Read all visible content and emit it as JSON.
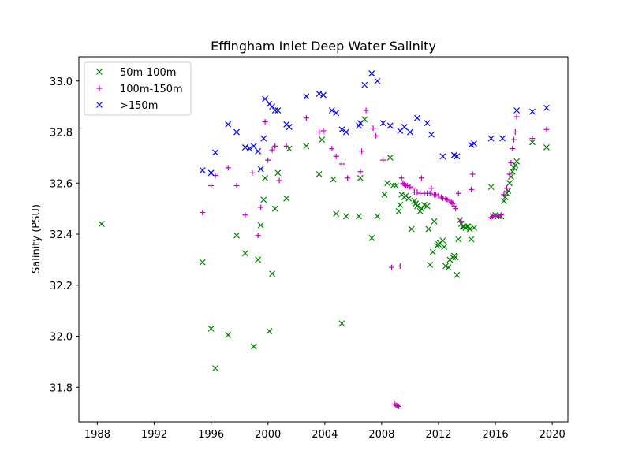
{
  "chart_data": {
    "type": "scatter",
    "title": "Effingham Inlet Deep Water Salinity",
    "xlabel": "",
    "ylabel": "Salinity (PSU)",
    "xlim": [
      1986.7,
      2021.1
    ],
    "ylim": [
      31.665,
      33.095
    ],
    "x_ticks": [
      1988,
      1992,
      1996,
      2000,
      2004,
      2008,
      2012,
      2016,
      2020
    ],
    "y_ticks": [
      31.8,
      32.0,
      32.2,
      32.4,
      32.6,
      32.8,
      33.0
    ],
    "y_tick_labels": [
      "31.8",
      "32.0",
      "32.2",
      "32.4",
      "32.6",
      "32.8",
      "33.0"
    ],
    "legend_position": "upper-left",
    "series": [
      {
        "name": "50m-100m",
        "marker": "x",
        "color": "#008000",
        "x": [
          1988.3,
          1995.4,
          1996.0,
          1996.3,
          1997.2,
          1997.8,
          1998.4,
          1999.0,
          1999.3,
          1999.5,
          1999.7,
          1999.8,
          2000.1,
          2000.3,
          2000.5,
          2000.7,
          2001.3,
          2001.5,
          2002.7,
          2003.6,
          2003.8,
          2004.6,
          2004.8,
          2005.2,
          2005.5,
          2006.4,
          2006.5,
          2006.8,
          2007.3,
          2007.7,
          2008.2,
          2008.4,
          2008.6,
          2008.8,
          2009.0,
          2009.2,
          2009.3,
          2009.4,
          2009.6,
          2009.7,
          2009.9,
          2010.1,
          2010.3,
          2010.4,
          2010.5,
          2010.7,
          2010.8,
          2011.0,
          2011.2,
          2011.3,
          2011.4,
          2011.6,
          2011.7,
          2011.9,
          2012.0,
          2012.1,
          2012.3,
          2012.4,
          2012.5,
          2012.7,
          2012.8,
          2013.0,
          2013.1,
          2013.2,
          2013.3,
          2013.4,
          2013.5,
          2013.6,
          2013.7,
          2013.8,
          2013.9,
          2014.0,
          2014.1,
          2014.2,
          2014.3,
          2014.5,
          2015.7,
          2015.8,
          2016.0,
          2016.2,
          2016.4,
          2016.6,
          2016.7,
          2016.8,
          2016.9,
          2017.0,
          2017.1,
          2017.2,
          2017.3,
          2017.4,
          2017.5,
          2018.6,
          2019.6
        ],
        "y": [
          32.44,
          32.29,
          32.03,
          31.875,
          32.005,
          32.395,
          32.325,
          31.96,
          32.3,
          32.435,
          32.535,
          32.62,
          32.02,
          32.245,
          32.5,
          32.64,
          32.54,
          32.735,
          32.745,
          32.635,
          32.77,
          32.615,
          32.48,
          32.05,
          32.47,
          32.47,
          32.62,
          32.85,
          32.385,
          32.47,
          32.555,
          32.6,
          32.7,
          32.59,
          32.59,
          32.49,
          32.515,
          32.555,
          32.545,
          32.55,
          32.54,
          32.42,
          32.53,
          32.52,
          32.51,
          32.49,
          32.5,
          32.515,
          32.51,
          32.42,
          32.28,
          32.33,
          32.45,
          32.355,
          32.36,
          32.365,
          32.375,
          32.35,
          32.275,
          32.27,
          32.3,
          32.31,
          32.315,
          32.31,
          32.24,
          32.38,
          32.455,
          32.44,
          32.43,
          32.43,
          32.425,
          32.43,
          32.43,
          32.42,
          32.38,
          32.425,
          32.585,
          32.47,
          32.475,
          32.47,
          32.47,
          32.53,
          32.545,
          32.56,
          32.57,
          32.6,
          32.625,
          32.645,
          32.66,
          32.67,
          32.685,
          32.76,
          32.74
        ]
      },
      {
        "name": "100m-150m",
        "marker": "+",
        "color": "#bf00bf",
        "x": [
          1995.4,
          1996.0,
          1996.3,
          1997.2,
          1997.8,
          1998.4,
          1998.9,
          1999.3,
          1999.5,
          1999.8,
          2000.0,
          2000.3,
          2000.5,
          2000.8,
          2001.3,
          2002.7,
          2003.6,
          2003.9,
          2004.5,
          2004.8,
          2005.2,
          2005.6,
          2006.5,
          2006.6,
          2006.9,
          2007.4,
          2007.6,
          2008.1,
          2008.7,
          2008.9,
          2009.0,
          2009.1,
          2009.2,
          2009.3,
          2009.4,
          2009.5,
          2009.6,
          2009.7,
          2009.8,
          2010.0,
          2010.2,
          2010.3,
          2010.5,
          2010.7,
          2010.8,
          2011.0,
          2011.2,
          2011.4,
          2011.5,
          2011.7,
          2011.8,
          2012.0,
          2012.2,
          2012.3,
          2012.5,
          2012.6,
          2012.8,
          2012.9,
          2013.0,
          2013.1,
          2013.2,
          2013.4,
          2013.6,
          2014.3,
          2014.4,
          2015.7,
          2015.8,
          2016.0,
          2016.2,
          2016.4,
          2016.6,
          2016.8,
          2017.0,
          2017.1,
          2017.2,
          2017.3,
          2017.4,
          2017.5,
          2018.6,
          2019.6
        ],
        "y": [
          32.485,
          32.59,
          32.63,
          32.66,
          32.59,
          32.475,
          32.64,
          32.395,
          32.505,
          32.84,
          32.69,
          32.73,
          32.745,
          32.61,
          32.745,
          32.855,
          32.8,
          32.805,
          32.735,
          32.705,
          32.675,
          32.62,
          32.645,
          32.725,
          32.885,
          32.815,
          32.785,
          32.69,
          32.27,
          31.735,
          31.73,
          31.728,
          31.725,
          32.275,
          32.62,
          32.6,
          32.595,
          32.59,
          32.59,
          32.585,
          32.58,
          32.565,
          32.565,
          32.56,
          32.62,
          32.56,
          32.56,
          32.56,
          32.58,
          32.555,
          32.555,
          32.55,
          32.545,
          32.54,
          32.54,
          32.535,
          32.53,
          32.525,
          32.52,
          32.51,
          32.5,
          32.56,
          32.45,
          32.575,
          32.635,
          32.465,
          32.47,
          32.47,
          32.47,
          32.475,
          32.555,
          32.58,
          32.635,
          32.68,
          32.735,
          32.77,
          32.8,
          32.86,
          32.775,
          32.81
        ]
      },
      {
        "name": ">150m",
        "marker": "x",
        "color": "#0000ff",
        "x": [
          1995.4,
          1996.0,
          1996.3,
          1997.2,
          1997.8,
          1998.4,
          1998.7,
          1999.0,
          1999.3,
          1999.5,
          1999.7,
          1999.8,
          2000.1,
          2000.3,
          2000.5,
          2000.7,
          2001.3,
          2001.5,
          2002.7,
          2003.6,
          2003.9,
          2004.5,
          2004.8,
          2005.2,
          2005.5,
          2006.4,
          2006.5,
          2006.8,
          2007.3,
          2007.7,
          2008.1,
          2008.6,
          2009.3,
          2009.6,
          2010.0,
          2010.5,
          2011.2,
          2011.5,
          2012.3,
          2013.1,
          2013.3,
          2014.3,
          2014.5,
          2015.7,
          2016.5,
          2017.5,
          2018.6,
          2019.6
        ],
        "y": [
          32.65,
          32.64,
          32.72,
          32.83,
          32.8,
          32.74,
          32.735,
          32.745,
          32.725,
          32.655,
          32.775,
          32.93,
          32.91,
          32.9,
          32.885,
          32.885,
          32.83,
          32.82,
          32.94,
          32.95,
          32.945,
          32.885,
          32.875,
          32.81,
          32.8,
          32.825,
          32.835,
          32.985,
          33.03,
          33.0,
          32.835,
          32.825,
          32.805,
          32.82,
          32.8,
          32.855,
          32.835,
          32.79,
          32.705,
          32.71,
          32.705,
          32.75,
          32.755,
          32.775,
          32.775,
          32.885,
          32.88,
          32.895
        ]
      }
    ]
  }
}
